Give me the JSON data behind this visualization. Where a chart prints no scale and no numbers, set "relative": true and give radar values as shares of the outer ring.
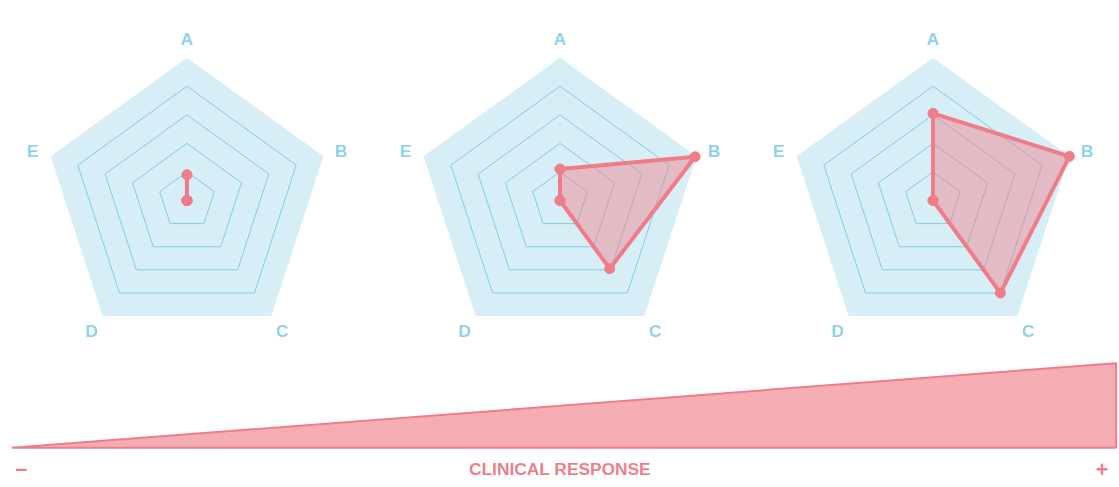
{
  "chart_data": [
    {
      "type": "radar",
      "relative": true,
      "grid": true,
      "marker": "circle",
      "categories": [
        "A",
        "B",
        "C",
        "D",
        "E"
      ],
      "series": [
        {
          "color": "#f07c8a",
          "values": [
            0.18,
            0,
            0,
            0,
            0
          ]
        }
      ]
    },
    {
      "type": "radar",
      "relative": true,
      "grid": true,
      "marker": "circle",
      "categories": [
        "A",
        "B",
        "C",
        "D",
        "E"
      ],
      "series": [
        {
          "color": "#f07c8a",
          "values": [
            0.22,
            0.99,
            0.59,
            0,
            0
          ]
        }
      ]
    },
    {
      "type": "radar",
      "relative": true,
      "grid": true,
      "marker": "circle",
      "categories": [
        "A",
        "B",
        "C",
        "D",
        "E"
      ],
      "series": [
        {
          "color": "#f07c8a",
          "values": [
            0.61,
            1.0,
            0.8,
            0,
            0
          ]
        }
      ]
    },
    {
      "type": "other",
      "annotations": [
        "−",
        "CLINICAL RESPONSE",
        "+"
      ]
    }
  ]
}
